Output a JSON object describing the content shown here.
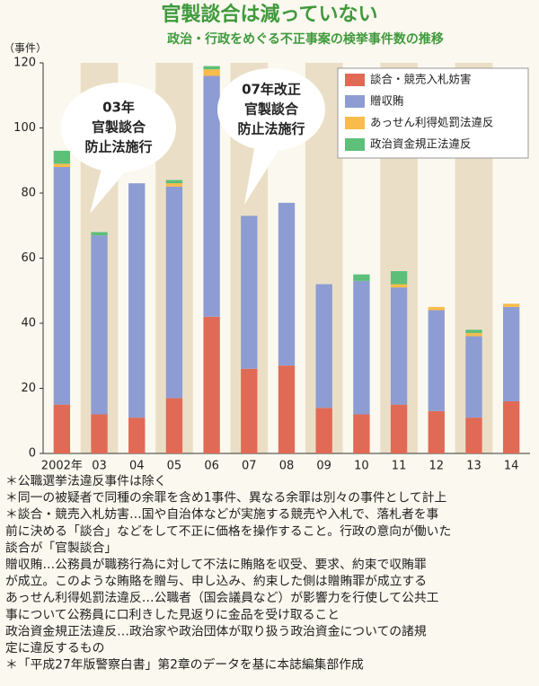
{
  "chart_data": {
    "type": "stacked_bar",
    "title": "官製談合は減っていない",
    "subtitle": "政治・行政をめぐる不正事案の検挙事件数の推移",
    "y_label": "（事件）",
    "categories": [
      "2002年",
      "03",
      "04",
      "05",
      "06",
      "07",
      "08",
      "09",
      "10",
      "11",
      "12",
      "13",
      "14"
    ],
    "series": [
      {
        "name": "談合・競売入札妨害",
        "color": "#e06a55",
        "values": [
          15,
          12,
          11,
          17,
          42,
          26,
          27,
          14,
          12,
          15,
          13,
          11,
          16
        ]
      },
      {
        "name": "贈収賄",
        "color": "#8d9dd3",
        "values": [
          73,
          55,
          72,
          65,
          74,
          47,
          50,
          38,
          41,
          36,
          31,
          25,
          29
        ]
      },
      {
        "name": "あっせん利得処罰法違反",
        "color": "#f8bb4c",
        "values": [
          1,
          0,
          0,
          1,
          2,
          0,
          0,
          0,
          0,
          1,
          1,
          1,
          1
        ]
      },
      {
        "name": "政治資金規正法違反",
        "color": "#5dbf78",
        "values": [
          4,
          1,
          0,
          1,
          1,
          0,
          0,
          0,
          2,
          4,
          0,
          1,
          0
        ]
      }
    ],
    "ylim": [
      0,
      120
    ],
    "yticks": [
      0,
      20,
      40,
      60,
      80,
      100,
      120
    ],
    "annotations": [
      [
        "03年",
        "官製談合",
        "防止法施行"
      ],
      [
        "07年改正",
        "官製談合",
        "防止法施行"
      ]
    ],
    "notes": [
      "＊公職選挙法違反事件は除く",
      "＊同一の被疑者で同種の余罪を含め1事件、異なる余罪は別々の事件として計上",
      "＊談合・競売入札妨害…国や自治体などが実施する競売や入札で、落札者を事",
      "前に決める「談合」などをして不正に価格を操作すること。行政の意向が働いた",
      "談合が「官製談合」",
      "贈収賄…公務員が職務行為に対して不法に賄賂を収受、要求、約束で収賄罪",
      "が成立。このような賄賂を贈与、申し込み、約束した側は贈賄罪が成立する",
      "あっせん利得処罰法違反…公職者（国会議員など）が影響力を行使して公共工",
      "事について公務員に口利きした見返りに金品を受け取ること",
      "政治資金規正法違反…政治家や政治団体が取り扱う政治資金についての諸規",
      "定に違反するもの",
      "＊「平成27年版警察白書」第2章のデータを基に本誌編集部作成"
    ]
  }
}
